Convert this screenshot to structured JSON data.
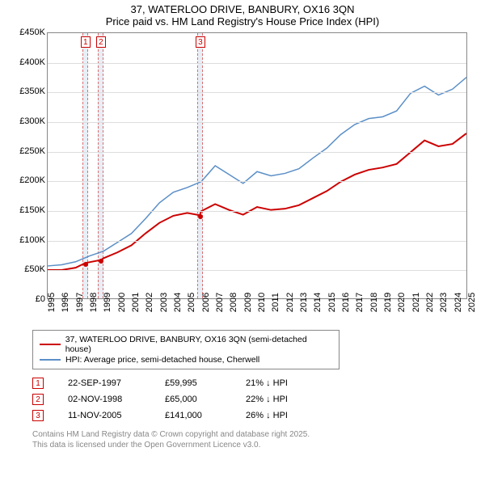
{
  "title": {
    "line1": "37, WATERLOO DRIVE, BANBURY, OX16 3QN",
    "line2": "Price paid vs. HM Land Registry's House Price Index (HPI)"
  },
  "chart": {
    "type": "line",
    "background_color": "#ffffff",
    "grid_color": "#dddddd",
    "border_color": "#888888",
    "x": {
      "min": 1995,
      "max": 2025,
      "tick_step": 1
    },
    "y": {
      "min": 0,
      "max": 450000,
      "tick_step": 50000,
      "tick_prefix": "£",
      "tick_suffix": "K",
      "tick_divisor": 1000
    },
    "series": [
      {
        "name": "37, WATERLOO DRIVE, BANBURY, OX16 3QN (semi-detached house)",
        "color": "#cc0000",
        "line_width": 2,
        "points": [
          [
            1995,
            48000
          ],
          [
            1996,
            48000
          ],
          [
            1997,
            52000
          ],
          [
            1997.7,
            59995
          ],
          [
            1998.8,
            65000
          ],
          [
            1999,
            68000
          ],
          [
            2000,
            78000
          ],
          [
            2001,
            90000
          ],
          [
            2002,
            110000
          ],
          [
            2003,
            128000
          ],
          [
            2004,
            140000
          ],
          [
            2005,
            145000
          ],
          [
            2005.9,
            141000
          ],
          [
            2006,
            148000
          ],
          [
            2007,
            160000
          ],
          [
            2008,
            150000
          ],
          [
            2009,
            142000
          ],
          [
            2010,
            155000
          ],
          [
            2011,
            150000
          ],
          [
            2012,
            152000
          ],
          [
            2013,
            158000
          ],
          [
            2014,
            170000
          ],
          [
            2015,
            182000
          ],
          [
            2016,
            198000
          ],
          [
            2017,
            210000
          ],
          [
            2018,
            218000
          ],
          [
            2019,
            222000
          ],
          [
            2020,
            228000
          ],
          [
            2021,
            248000
          ],
          [
            2022,
            268000
          ],
          [
            2023,
            258000
          ],
          [
            2024,
            262000
          ],
          [
            2025,
            280000
          ]
        ]
      },
      {
        "name": "HPI: Average price, semi-detached house, Cherwell",
        "color": "#5b8fc7",
        "line_width": 1.5,
        "points": [
          [
            1995,
            55000
          ],
          [
            1996,
            57000
          ],
          [
            1997,
            62000
          ],
          [
            1998,
            72000
          ],
          [
            1999,
            80000
          ],
          [
            2000,
            95000
          ],
          [
            2001,
            110000
          ],
          [
            2002,
            135000
          ],
          [
            2003,
            162000
          ],
          [
            2004,
            180000
          ],
          [
            2005,
            188000
          ],
          [
            2006,
            198000
          ],
          [
            2007,
            225000
          ],
          [
            2008,
            210000
          ],
          [
            2009,
            195000
          ],
          [
            2010,
            215000
          ],
          [
            2011,
            208000
          ],
          [
            2012,
            212000
          ],
          [
            2013,
            220000
          ],
          [
            2014,
            238000
          ],
          [
            2015,
            255000
          ],
          [
            2016,
            278000
          ],
          [
            2017,
            295000
          ],
          [
            2018,
            305000
          ],
          [
            2019,
            308000
          ],
          [
            2020,
            318000
          ],
          [
            2021,
            348000
          ],
          [
            2022,
            360000
          ],
          [
            2023,
            345000
          ],
          [
            2024,
            355000
          ],
          [
            2025,
            375000
          ]
        ]
      }
    ],
    "markers": [
      {
        "num": "1",
        "year": 1997.7,
        "value": 59995
      },
      {
        "num": "2",
        "year": 1998.8,
        "value": 65000
      },
      {
        "num": "3",
        "year": 2005.9,
        "value": 141000
      }
    ],
    "marker_style": {
      "band_color": "#e8eef6",
      "dash_color": "#d97070",
      "box_border": "#cc0000",
      "text_color": "#cc0000",
      "band_width_years": 0.4
    }
  },
  "legend": {
    "items": [
      {
        "color": "#cc0000",
        "label": "37, WATERLOO DRIVE, BANBURY, OX16 3QN (semi-detached house)"
      },
      {
        "color": "#5b8fc7",
        "label": "HPI: Average price, semi-detached house, Cherwell"
      }
    ]
  },
  "transactions": [
    {
      "num": "1",
      "date": "22-SEP-1997",
      "price": "£59,995",
      "diff": "21% ↓ HPI"
    },
    {
      "num": "2",
      "date": "02-NOV-1998",
      "price": "£65,000",
      "diff": "22% ↓ HPI"
    },
    {
      "num": "3",
      "date": "11-NOV-2005",
      "price": "£141,000",
      "diff": "26% ↓ HPI"
    }
  ],
  "footer": {
    "line1": "Contains HM Land Registry data © Crown copyright and database right 2025.",
    "line2": "This data is licensed under the Open Government Licence v3.0."
  }
}
